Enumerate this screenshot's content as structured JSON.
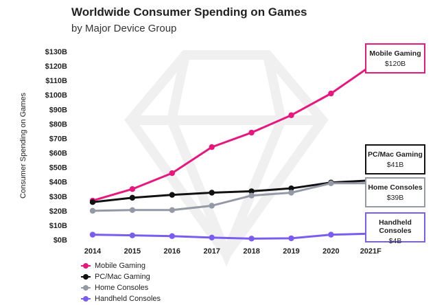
{
  "chart_data": {
    "type": "line",
    "title": "Worldwide Consumer Spending on Games",
    "subtitle": "by Major Device Group",
    "ylabel": "Consumer Spending on Games",
    "xlabel": "",
    "categories": [
      "2014",
      "2015",
      "2016",
      "2017",
      "2018",
      "2019",
      "2020",
      "2021F"
    ],
    "ylim": [
      0,
      130
    ],
    "yticks": [
      0,
      10,
      20,
      30,
      40,
      50,
      60,
      70,
      80,
      90,
      100,
      110,
      120,
      130
    ],
    "ytick_labels": [
      "$0B",
      "$10B",
      "$20B",
      "$30B",
      "$40B",
      "$50B",
      "$60B",
      "$70B",
      "$80B",
      "$90B",
      "$100B",
      "$110B",
      "$120B",
      "$130B"
    ],
    "series": [
      {
        "name": "Mobile Gaming",
        "color": "#e8177d",
        "values": [
          27,
          35,
          46,
          64,
          74,
          86,
          101,
          120
        ],
        "callout_name": "Mobile Gaming",
        "callout_value": "$120B"
      },
      {
        "name": "PC/Mac Gaming",
        "color": "#111111",
        "values": [
          26,
          29,
          31,
          32.5,
          33.5,
          35.5,
          39.5,
          41
        ],
        "callout_name": "PC/Mac Gaming",
        "callout_value": "$41B"
      },
      {
        "name": "Home Consoles",
        "color": "#9499a6",
        "values": [
          20,
          20.5,
          20.5,
          23.5,
          30.5,
          32.5,
          39,
          39
        ],
        "callout_name": "Home Consoles",
        "callout_value": "$39B"
      },
      {
        "name": "Handheld Consoles",
        "color": "#7a5cf0",
        "values": [
          3.5,
          3,
          2.5,
          1.5,
          0.8,
          1,
          3.5,
          4.2
        ],
        "callout_name": "Handheld Consoles",
        "callout_value": "$4B"
      }
    ],
    "legend_position": "bottom-left",
    "grid": false
  }
}
